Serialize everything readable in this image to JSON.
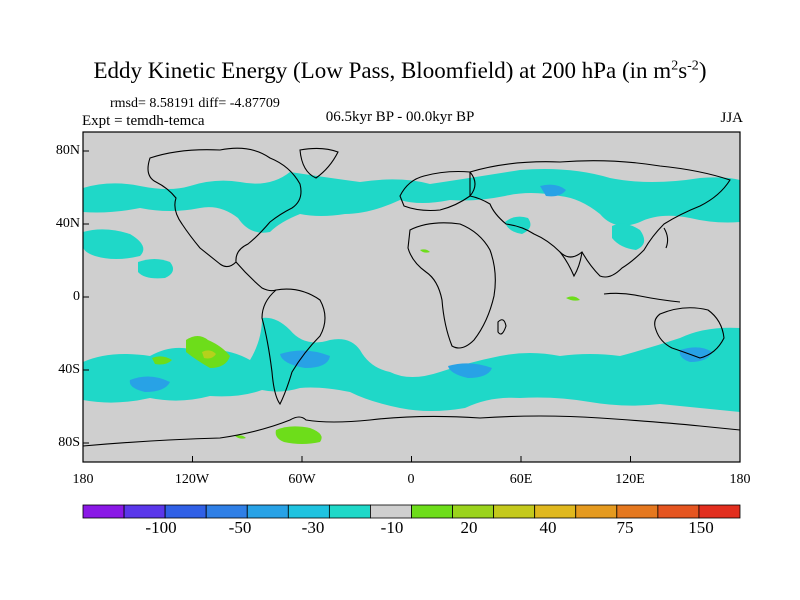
{
  "title": {
    "main": "Eddy Kinetic Energy (Low Pass, Bloomfield) at 200 hPa (in m",
    "exp1": "2",
    "mid": "s",
    "exp2": "-2",
    "close": ")"
  },
  "stats": "rmsd= 8.58191 diff= -4.87709",
  "experiment": "Expt = temdh-temca",
  "period": "06.5kyr BP - 00.0kyr BP",
  "season": "JJA",
  "x_ticks": [
    "180",
    "120W",
    "60W",
    "0",
    "60E",
    "120E",
    "180"
  ],
  "y_ticks": [
    "80N",
    "40N",
    "0",
    "40S",
    "80S"
  ],
  "colorbar": {
    "colors": [
      "#8a18e6",
      "#5a37ea",
      "#3060e6",
      "#2f7fe6",
      "#28a2e6",
      "#1fc3e0",
      "#1fd8c8",
      "#cfcfcf",
      "#6ddd1a",
      "#9ad31c",
      "#c4c91c",
      "#e0b81e",
      "#e59a1f",
      "#e5781f",
      "#e55520",
      "#e22e1e"
    ],
    "labels": [
      "-100",
      "-50",
      "-30",
      "-10",
      "20",
      "40",
      "75",
      "150"
    ]
  },
  "colors": {
    "background": "#cfcfcf",
    "cyan": "#1fd8c8",
    "blue": "#28a2e6",
    "green": "#6ddd1a",
    "yellow_green": "#b5d11c"
  }
}
